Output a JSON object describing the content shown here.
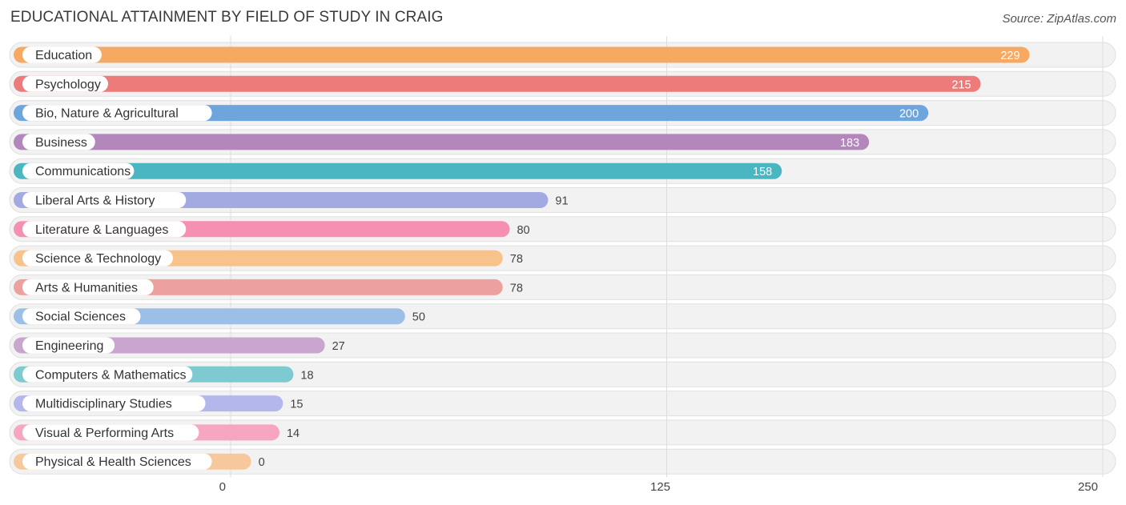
{
  "header": {
    "title": "EDUCATIONAL ATTAINMENT BY FIELD OF STUDY IN CRAIG",
    "source": "Source: ZipAtlas.com"
  },
  "chart_data": {
    "type": "bar",
    "orientation": "horizontal",
    "title": "EDUCATIONAL ATTAINMENT BY FIELD OF STUDY IN CRAIG",
    "xlabel": "",
    "ylabel": "",
    "xlim": [
      0,
      250
    ],
    "x_ticks": [
      0,
      125,
      250
    ],
    "grid": true,
    "categories": [
      "Education",
      "Psychology",
      "Bio, Nature & Agricultural",
      "Business",
      "Communications",
      "Liberal Arts & History",
      "Literature & Languages",
      "Science & Technology",
      "Arts & Humanities",
      "Social Sciences",
      "Engineering",
      "Computers & Mathematics",
      "Multidisciplinary Studies",
      "Visual & Performing Arts",
      "Physical & Health Sciences"
    ],
    "values": [
      229,
      215,
      200,
      183,
      158,
      91,
      80,
      78,
      78,
      50,
      27,
      18,
      15,
      14,
      0
    ],
    "colors": [
      "#f7a961",
      "#ec7b7a",
      "#6fa5dd",
      "#b386bc",
      "#49b6c2",
      "#a3aae2",
      "#f590b2",
      "#f8c28b",
      "#eda19e",
      "#9cbfe8",
      "#c9a5d0",
      "#7dcad0",
      "#b3b7ec",
      "#f6a6c1",
      "#f8c89d"
    ]
  }
}
